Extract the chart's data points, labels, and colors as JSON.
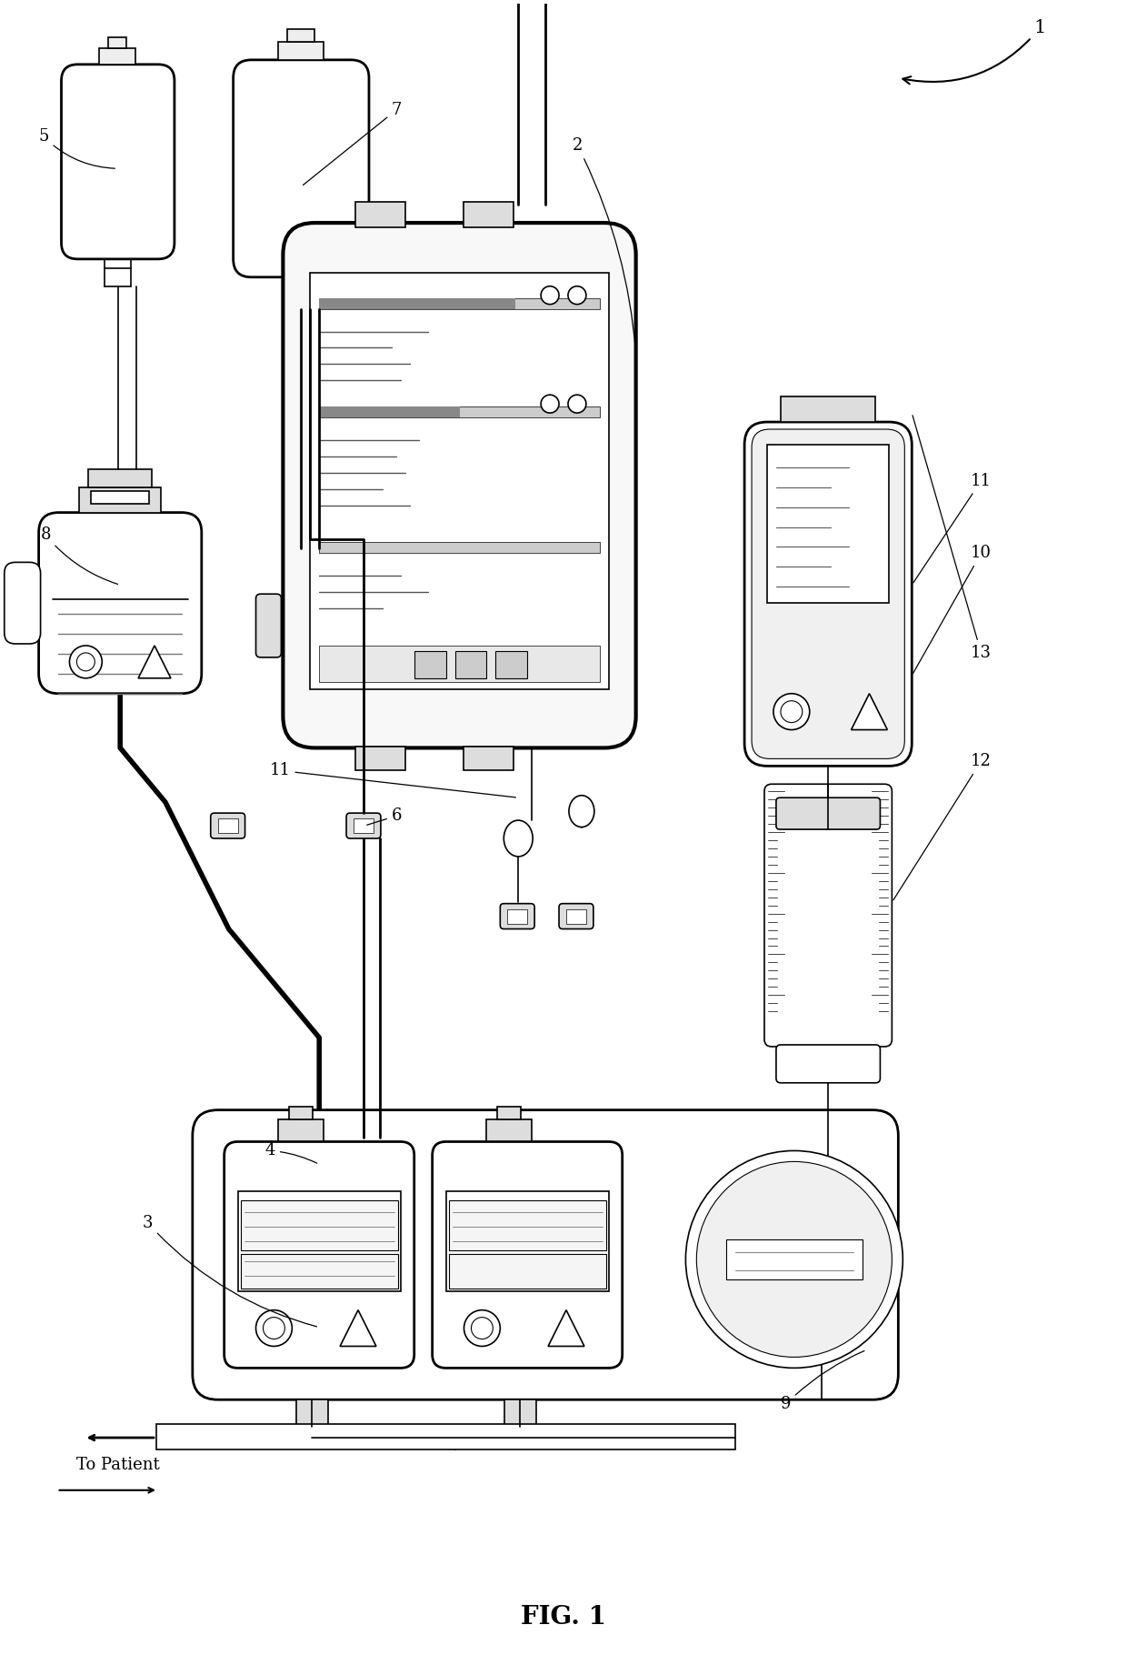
{
  "title": "FIG. 1",
  "bg_color": "#ffffff",
  "line_color": "#000000",
  "fig_width": 12.4,
  "fig_height": 18.42,
  "dpi": 100
}
